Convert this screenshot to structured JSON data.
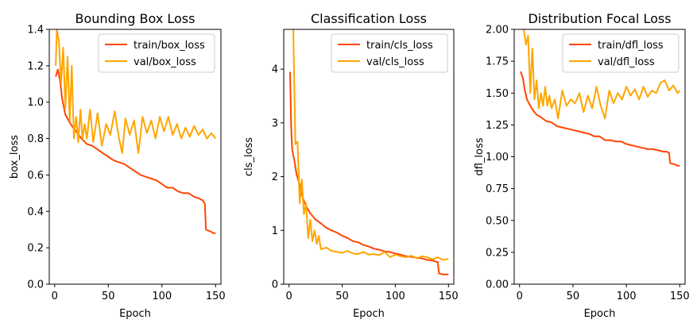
{
  "chart_data": [
    {
      "type": "line",
      "title": "Bounding Box Loss",
      "xlabel": "Epoch",
      "ylabel": "box_loss",
      "xlim": [
        -5,
        155
      ],
      "ylim": [
        0,
        1.4
      ],
      "xticks": [
        0,
        50,
        100,
        150
      ],
      "yticks": [
        0.0,
        0.2,
        0.4,
        0.6,
        0.8,
        1.0,
        1.2,
        1.4
      ],
      "ytick_labels": [
        "0.0",
        "0.2",
        "0.4",
        "0.6",
        "0.8",
        "1.0",
        "1.2",
        "1.4"
      ],
      "legend": "top-right",
      "grid": false,
      "series": [
        {
          "name": "train/box_loss",
          "color": "#ff4500",
          "x": [
            1,
            3,
            5,
            7,
            10,
            13,
            16,
            20,
            25,
            30,
            35,
            40,
            45,
            50,
            55,
            60,
            65,
            70,
            75,
            80,
            85,
            90,
            95,
            100,
            105,
            110,
            115,
            120,
            125,
            130,
            135,
            138,
            140,
            141,
            145,
            148,
            150
          ],
          "y": [
            1.14,
            1.18,
            1.12,
            1.02,
            0.93,
            0.9,
            0.87,
            0.84,
            0.8,
            0.77,
            0.76,
            0.74,
            0.72,
            0.7,
            0.68,
            0.67,
            0.66,
            0.64,
            0.62,
            0.6,
            0.59,
            0.58,
            0.57,
            0.55,
            0.53,
            0.53,
            0.51,
            0.5,
            0.5,
            0.48,
            0.47,
            0.46,
            0.44,
            0.3,
            0.29,
            0.28,
            0.28
          ]
        },
        {
          "name": "val/box_loss",
          "color": "#ffa500",
          "x": [
            1,
            2,
            4,
            6,
            8,
            10,
            12,
            14,
            16,
            18,
            20,
            22,
            24,
            26,
            28,
            30,
            33,
            36,
            40,
            44,
            48,
            52,
            56,
            60,
            63,
            66,
            70,
            74,
            78,
            82,
            86,
            90,
            94,
            98,
            102,
            106,
            110,
            114,
            118,
            122,
            126,
            130,
            134,
            138,
            142,
            146,
            150
          ],
          "y": [
            1.2,
            1.4,
            1.33,
            1.1,
            1.3,
            0.97,
            1.25,
            0.9,
            1.2,
            0.8,
            0.92,
            0.78,
            0.96,
            0.8,
            0.88,
            0.8,
            0.96,
            0.78,
            0.94,
            0.76,
            0.88,
            0.82,
            0.95,
            0.8,
            0.72,
            0.91,
            0.82,
            0.9,
            0.72,
            0.92,
            0.83,
            0.9,
            0.8,
            0.92,
            0.84,
            0.92,
            0.82,
            0.88,
            0.8,
            0.86,
            0.81,
            0.87,
            0.82,
            0.85,
            0.8,
            0.83,
            0.8
          ]
        }
      ]
    },
    {
      "type": "line",
      "title": "Classification Loss",
      "xlabel": "Epoch",
      "ylabel": "cls_loss",
      "xlim": [
        -5,
        155
      ],
      "ylim": [
        0,
        4.74
      ],
      "xticks": [
        0,
        50,
        100,
        150
      ],
      "yticks": [
        0,
        1,
        2,
        3,
        4
      ],
      "ytick_labels": [
        "0",
        "1",
        "2",
        "3",
        "4"
      ],
      "legend": "top-right",
      "grid": false,
      "series": [
        {
          "name": "train/cls_loss",
          "color": "#ff4500",
          "x": [
            1,
            2,
            3,
            5,
            7,
            10,
            13,
            16,
            20,
            25,
            30,
            35,
            40,
            45,
            50,
            55,
            60,
            65,
            70,
            75,
            80,
            85,
            90,
            95,
            100,
            105,
            110,
            115,
            120,
            125,
            130,
            135,
            138,
            140,
            141,
            145,
            150
          ],
          "y": [
            3.95,
            2.9,
            2.5,
            2.3,
            2.05,
            1.85,
            1.6,
            1.45,
            1.32,
            1.2,
            1.13,
            1.05,
            1.0,
            0.96,
            0.9,
            0.86,
            0.8,
            0.78,
            0.73,
            0.7,
            0.66,
            0.64,
            0.61,
            0.6,
            0.57,
            0.55,
            0.52,
            0.51,
            0.49,
            0.48,
            0.45,
            0.44,
            0.42,
            0.41,
            0.2,
            0.18,
            0.18
          ]
        },
        {
          "name": "val/cls_loss",
          "color": "#ffa500",
          "x": [
            4,
            6,
            8,
            10,
            12,
            14,
            16,
            18,
            20,
            22,
            24,
            26,
            28,
            30,
            35,
            40,
            45,
            50,
            55,
            60,
            65,
            70,
            75,
            80,
            85,
            90,
            95,
            100,
            105,
            110,
            115,
            120,
            125,
            130,
            135,
            140,
            145,
            150
          ],
          "y": [
            4.74,
            2.6,
            2.65,
            1.5,
            1.95,
            1.3,
            1.5,
            0.85,
            1.2,
            0.8,
            1.0,
            0.75,
            0.9,
            0.65,
            0.68,
            0.62,
            0.6,
            0.58,
            0.62,
            0.57,
            0.56,
            0.6,
            0.55,
            0.56,
            0.54,
            0.6,
            0.5,
            0.55,
            0.52,
            0.5,
            0.53,
            0.48,
            0.52,
            0.5,
            0.46,
            0.5,
            0.45,
            0.47
          ]
        }
      ]
    },
    {
      "type": "line",
      "title": "Distribution Focal Loss",
      "xlabel": "Epoch",
      "ylabel": "dfl_loss",
      "xlim": [
        -5,
        155
      ],
      "ylim": [
        0,
        2.0
      ],
      "xticks": [
        0,
        50,
        100,
        150
      ],
      "yticks": [
        0.0,
        0.25,
        0.5,
        0.75,
        1.0,
        1.25,
        1.5,
        1.75,
        2.0
      ],
      "ytick_labels": [
        "0.00",
        "0.25",
        "0.50",
        "0.75",
        "1.00",
        "1.25",
        "1.50",
        "1.75",
        "2.00"
      ],
      "legend": "top-right",
      "grid": false,
      "series": [
        {
          "name": "train/dfl_loss",
          "color": "#ff4500",
          "x": [
            1,
            3,
            5,
            7,
            10,
            13,
            16,
            20,
            25,
            30,
            35,
            40,
            45,
            50,
            55,
            60,
            65,
            70,
            75,
            80,
            85,
            90,
            95,
            100,
            105,
            110,
            115,
            120,
            125,
            130,
            135,
            138,
            140,
            141,
            145,
            148,
            150
          ],
          "y": [
            1.67,
            1.62,
            1.52,
            1.45,
            1.4,
            1.36,
            1.33,
            1.31,
            1.28,
            1.27,
            1.24,
            1.23,
            1.22,
            1.21,
            1.2,
            1.19,
            1.18,
            1.16,
            1.16,
            1.13,
            1.13,
            1.12,
            1.12,
            1.1,
            1.09,
            1.08,
            1.07,
            1.06,
            1.06,
            1.05,
            1.04,
            1.04,
            1.03,
            0.95,
            0.94,
            0.93,
            0.93
          ]
        },
        {
          "name": "val/dfl_loss",
          "color": "#ffa500",
          "x": [
            4,
            6,
            8,
            10,
            12,
            14,
            16,
            18,
            20,
            22,
            24,
            26,
            28,
            30,
            33,
            36,
            40,
            44,
            48,
            52,
            56,
            60,
            64,
            68,
            72,
            76,
            80,
            84,
            88,
            92,
            96,
            100,
            104,
            108,
            112,
            116,
            120,
            124,
            128,
            132,
            136,
            140,
            144,
            148,
            150
          ],
          "y": [
            2.0,
            1.88,
            1.95,
            1.5,
            1.85,
            1.45,
            1.6,
            1.38,
            1.5,
            1.4,
            1.55,
            1.4,
            1.48,
            1.38,
            1.45,
            1.3,
            1.52,
            1.4,
            1.45,
            1.42,
            1.5,
            1.35,
            1.48,
            1.38,
            1.55,
            1.4,
            1.3,
            1.52,
            1.42,
            1.5,
            1.45,
            1.55,
            1.48,
            1.53,
            1.45,
            1.55,
            1.47,
            1.52,
            1.5,
            1.58,
            1.6,
            1.52,
            1.56,
            1.5,
            1.52
          ]
        }
      ]
    }
  ]
}
